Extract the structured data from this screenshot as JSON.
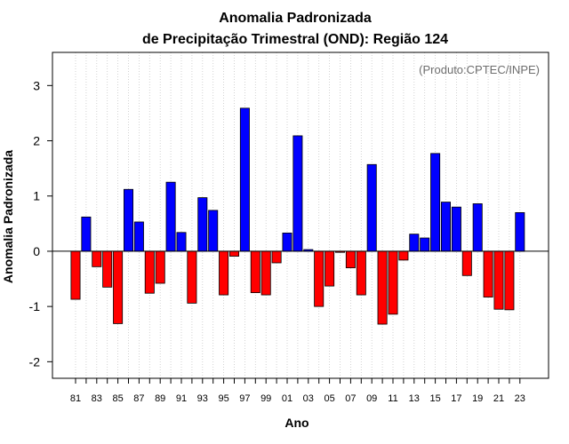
{
  "chart_data": {
    "type": "bar",
    "title_line1": "Anomalia Padronizada",
    "title_line2": "de Precipitação Trimestral (OND): Região 124",
    "xlabel": "Ano",
    "ylabel": "Anomalia Padronizada",
    "credit": "(Produto:CPTEC/INPE)",
    "ylim": [
      -2.3,
      3.6
    ],
    "yticks": [
      "-2",
      "-1",
      "0",
      "1",
      "2",
      "3"
    ],
    "ytick_values": [
      -2,
      -1,
      0,
      1,
      2,
      3
    ],
    "xtick_labels": [
      "81",
      "83",
      "85",
      "87",
      "89",
      "91",
      "93",
      "95",
      "97",
      "99",
      "01",
      "03",
      "05",
      "07",
      "09",
      "11",
      "13",
      "15",
      "17",
      "19",
      "21",
      "23"
    ],
    "categories": [
      "1981",
      "1982",
      "1983",
      "1984",
      "1985",
      "1986",
      "1987",
      "1988",
      "1989",
      "1990",
      "1991",
      "1992",
      "1993",
      "1994",
      "1995",
      "1996",
      "1997",
      "1998",
      "1999",
      "2000",
      "2001",
      "2002",
      "2003",
      "2004",
      "2005",
      "2006",
      "2007",
      "2008",
      "2009",
      "2010",
      "2011",
      "2012",
      "2013",
      "2014",
      "2015",
      "2016",
      "2017",
      "2018",
      "2019",
      "2020",
      "2021",
      "2022",
      "2023"
    ],
    "values": [
      -0.87,
      0.62,
      -0.28,
      -0.65,
      -1.31,
      1.12,
      0.53,
      -0.76,
      -0.58,
      1.25,
      0.34,
      -0.94,
      0.97,
      0.74,
      -0.79,
      -0.09,
      2.59,
      -0.75,
      -0.79,
      -0.21,
      0.33,
      2.09,
      0.03,
      -1.0,
      -0.63,
      -0.02,
      -0.3,
      -0.79,
      1.57,
      -1.32,
      -1.14,
      -0.16,
      0.31,
      0.24,
      1.77,
      0.89,
      0.8,
      -0.44,
      0.86,
      -0.83,
      -1.05,
      -1.06,
      0.7
    ],
    "positive_color": "#0000ff",
    "negative_color": "#ff0000",
    "grid": "vertical dotted"
  }
}
